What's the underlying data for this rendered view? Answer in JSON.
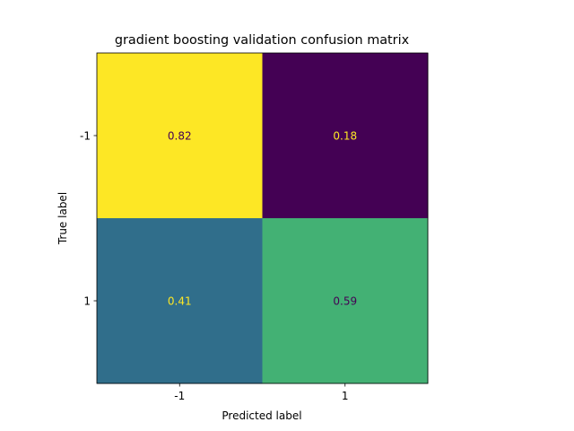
{
  "chart_data": {
    "type": "heatmap",
    "title": "gradient boosting validation confusion matrix",
    "xlabel": "Predicted label",
    "ylabel": "True label",
    "x_categories": [
      "-1",
      "1"
    ],
    "y_categories": [
      "-1",
      "1"
    ],
    "values": [
      [
        0.82,
        0.18
      ],
      [
        0.41,
        0.59
      ]
    ],
    "value_labels": [
      [
        "0.82",
        "0.18"
      ],
      [
        "0.41",
        "0.59"
      ]
    ],
    "colormap": "viridis",
    "colorbar": false,
    "grid": false
  }
}
